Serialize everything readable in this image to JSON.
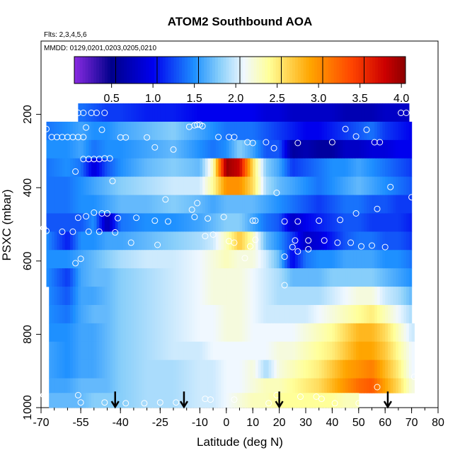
{
  "chart_data": {
    "type": "heatmap",
    "title": "ATOM2 Southbound AOA",
    "flights_note": "Flts: 2,3,4,5,6",
    "dates_note": "MMDD: 0129,0201,0203,0205,0210",
    "xlabel": "Latitude (deg N)",
    "ylabel": "PSXC (mbar)",
    "xlim": [
      -70,
      80
    ],
    "ylim": [
      1000,
      0
    ],
    "x_ticks": [
      -70,
      -55,
      -40,
      -25,
      -10,
      0,
      10,
      20,
      30,
      40,
      50,
      60,
      70,
      80
    ],
    "x_tick_labels": [
      "-70",
      "-55",
      "-40",
      "-25",
      "-10",
      "0",
      "10",
      "20",
      "30",
      "40",
      "50",
      "60",
      "70",
      "80"
    ],
    "y_ticks": [
      200,
      400,
      600,
      800,
      1000
    ],
    "y_tick_labels": [
      "200",
      "400",
      "600",
      "800",
      "1000"
    ],
    "colorbar": {
      "range": [
        0.05,
        4.05
      ],
      "ticks": [
        0.5,
        1.0,
        1.5,
        2.0,
        2.5,
        3.0,
        3.5,
        4.0
      ],
      "tick_labels": [
        "0.5",
        "1.0",
        "1.5",
        "2.0",
        "2.5",
        "3.0",
        "3.5",
        "4.0"
      ],
      "stops": [
        {
          "v": 0.05,
          "c": "#8a2be2"
        },
        {
          "v": 0.5,
          "c": "#00008b"
        },
        {
          "v": 1.0,
          "c": "#0000ee"
        },
        {
          "v": 1.5,
          "c": "#1e90ff"
        },
        {
          "v": 1.8,
          "c": "#87cefa"
        },
        {
          "v": 2.1,
          "c": "#f0f8ff"
        },
        {
          "v": 2.4,
          "c": "#ffff99"
        },
        {
          "v": 2.9,
          "c": "#ffa500"
        },
        {
          "v": 3.4,
          "c": "#ff4500"
        },
        {
          "v": 3.8,
          "c": "#cc0000"
        },
        {
          "v": 4.05,
          "c": "#8b0000"
        }
      ]
    },
    "field": {
      "rows": [
        {
          "p0": 170,
          "p1": 220,
          "lat0": -56,
          "lat1": 69
        },
        {
          "p0": 220,
          "p1": 270,
          "lat0": -68,
          "lat1": 70
        },
        {
          "p0": 270,
          "p1": 320,
          "lat0": -68,
          "lat1": 70
        },
        {
          "p0": 320,
          "p1": 370,
          "lat0": -68,
          "lat1": 70
        },
        {
          "p0": 370,
          "p1": 420,
          "lat0": -68,
          "lat1": 70
        },
        {
          "p0": 420,
          "p1": 470,
          "lat0": -68,
          "lat1": 70
        },
        {
          "p0": 470,
          "p1": 520,
          "lat0": -68,
          "lat1": 70
        },
        {
          "p0": 520,
          "p1": 570,
          "lat0": -68,
          "lat1": 70
        },
        {
          "p0": 570,
          "p1": 620,
          "lat0": -68,
          "lat1": 70
        },
        {
          "p0": 620,
          "p1": 670,
          "lat0": -68,
          "lat1": 70
        },
        {
          "p0": 670,
          "p1": 720,
          "lat0": -67,
          "lat1": 70
        },
        {
          "p0": 720,
          "p1": 770,
          "lat0": -67,
          "lat1": 70
        },
        {
          "p0": 770,
          "p1": 820,
          "lat0": -67,
          "lat1": 71
        },
        {
          "p0": 820,
          "p1": 870,
          "lat0": -67,
          "lat1": 71
        },
        {
          "p0": 870,
          "p1": 920,
          "lat0": -67,
          "lat1": 71
        },
        {
          "p0": 920,
          "p1": 960,
          "lat0": -67,
          "lat1": 71
        },
        {
          "p0": 960,
          "p1": 1000,
          "lat0": -67,
          "lat1": 50
        }
      ],
      "lat_nodes": [
        -68,
        -60,
        -55,
        -50,
        -45,
        -40,
        -30,
        -20,
        -10,
        -5,
        0,
        5,
        10,
        15,
        20,
        25,
        30,
        35,
        40,
        45,
        50,
        55,
        60,
        65,
        70
      ],
      "values": [
        [
          1.3,
          1.3,
          1.4,
          1.3,
          1.2,
          1.2,
          1.1,
          1.1,
          1.0,
          1.0,
          1.0,
          1.0,
          1.0,
          0.9,
          0.9,
          0.8,
          0.8,
          0.8,
          0.8,
          0.7,
          0.7,
          0.7,
          0.8,
          0.8,
          0.8
        ],
        [
          1.4,
          1.5,
          1.6,
          1.5,
          1.5,
          1.6,
          1.7,
          1.8,
          1.6,
          1.5,
          1.4,
          1.4,
          1.4,
          1.3,
          1.2,
          1.1,
          1.0,
          1.0,
          1.1,
          1.2,
          1.3,
          1.4,
          1.2,
          1.1,
          1.0
        ],
        [
          1.5,
          1.5,
          1.6,
          1.4,
          1.5,
          1.5,
          1.6,
          1.7,
          1.5,
          1.4,
          1.5,
          1.8,
          1.6,
          1.3,
          1.3,
          0.6,
          0.7,
          0.6,
          0.6,
          0.8,
          0.8,
          0.9,
          0.9,
          1.0,
          1.0
        ],
        [
          1.4,
          1.5,
          1.4,
          0.9,
          1.3,
          1.5,
          1.7,
          1.8,
          1.7,
          2.3,
          4.0,
          3.8,
          2.6,
          1.8,
          1.6,
          1.2,
          1.3,
          1.4,
          1.5,
          1.5,
          1.6,
          1.5,
          1.4,
          1.3,
          1.2
        ],
        [
          1.4,
          1.4,
          1.5,
          1.6,
          1.7,
          1.8,
          1.9,
          2.0,
          2.0,
          2.4,
          3.0,
          3.0,
          2.6,
          1.9,
          1.7,
          1.6,
          1.5,
          1.4,
          1.5,
          1.6,
          1.7,
          1.6,
          1.5,
          1.4,
          1.3
        ],
        [
          1.4,
          1.4,
          1.5,
          1.5,
          1.6,
          1.7,
          1.7,
          1.8,
          1.7,
          1.6,
          1.7,
          1.7,
          1.7,
          1.6,
          1.5,
          1.4,
          1.3,
          1.2,
          1.3,
          1.4,
          1.4,
          1.3,
          1.3,
          1.2,
          1.2
        ],
        [
          1.3,
          1.3,
          1.3,
          1.5,
          0.7,
          1.4,
          1.5,
          1.5,
          1.6,
          1.7,
          1.8,
          1.8,
          1.6,
          1.4,
          1.3,
          0.8,
          1.0,
          1.1,
          1.2,
          1.3,
          1.3,
          1.2,
          1.2,
          1.2,
          1.1
        ],
        [
          1.5,
          1.1,
          1.5,
          1.5,
          1.6,
          1.6,
          1.7,
          1.8,
          1.9,
          2.0,
          2.3,
          2.7,
          2.3,
          1.7,
          1.5,
          1.2,
          0.8,
          0.9,
          1.1,
          1.3,
          1.4,
          1.4,
          1.3,
          1.3,
          1.2
        ],
        [
          1.5,
          1.5,
          1.6,
          1.7,
          1.8,
          1.9,
          2.0,
          2.0,
          2.1,
          2.2,
          2.3,
          2.2,
          2.2,
          2.0,
          1.7,
          1.0,
          1.4,
          1.5,
          1.5,
          1.6,
          1.6,
          1.6,
          1.5,
          1.5,
          1.4
        ],
        [
          1.5,
          1.2,
          1.6,
          1.7,
          1.7,
          1.8,
          1.9,
          2.0,
          2.1,
          2.2,
          2.2,
          2.2,
          2.1,
          2.0,
          1.9,
          1.7,
          1.7,
          1.7,
          1.8,
          1.8,
          1.8,
          1.8,
          1.7,
          1.6,
          1.5
        ],
        [
          1.5,
          1.3,
          1.6,
          1.6,
          1.7,
          1.8,
          1.9,
          2.0,
          2.1,
          2.2,
          2.2,
          2.2,
          2.1,
          2.0,
          1.9,
          1.9,
          1.9,
          1.9,
          2.0,
          2.1,
          2.2,
          2.2,
          2.0,
          1.9,
          1.7
        ],
        [
          1.5,
          1.4,
          1.6,
          1.7,
          1.7,
          1.8,
          1.9,
          2.0,
          2.1,
          2.1,
          2.2,
          2.2,
          2.1,
          2.0,
          2.0,
          2.0,
          2.0,
          2.1,
          2.2,
          2.3,
          2.4,
          2.5,
          2.3,
          2.1,
          1.9
        ],
        [
          1.5,
          1.5,
          1.6,
          1.6,
          1.7,
          1.8,
          1.9,
          2.0,
          2.1,
          2.1,
          2.2,
          2.2,
          2.1,
          2.1,
          2.1,
          2.1,
          2.2,
          2.3,
          2.4,
          2.6,
          2.8,
          2.8,
          2.6,
          2.3,
          2.0
        ],
        [
          1.6,
          1.5,
          1.6,
          1.6,
          1.7,
          1.8,
          1.9,
          2.0,
          2.0,
          2.1,
          2.1,
          2.1,
          2.1,
          2.1,
          2.2,
          2.2,
          2.3,
          2.4,
          2.5,
          2.7,
          2.9,
          2.9,
          2.7,
          2.4,
          2.1
        ],
        [
          1.6,
          1.5,
          1.6,
          1.6,
          1.7,
          1.8,
          1.9,
          1.9,
          2.0,
          2.0,
          2.1,
          2.1,
          2.2,
          1.9,
          2.2,
          2.3,
          2.4,
          2.5,
          2.7,
          2.9,
          3.0,
          3.1,
          2.8,
          2.5,
          2.1
        ],
        [
          1.6,
          1.6,
          1.7,
          1.7,
          1.7,
          1.8,
          1.9,
          1.9,
          2.0,
          2.0,
          2.1,
          2.1,
          2.2,
          2.3,
          2.3,
          2.4,
          2.5,
          2.6,
          2.8,
          3.0,
          3.2,
          3.3,
          2.9,
          2.6,
          2.2
        ],
        [
          1.7,
          1.7,
          1.7,
          1.8,
          1.8,
          1.8,
          1.9,
          1.9,
          2.0,
          2.0,
          2.1,
          2.2,
          2.3,
          2.3,
          2.4,
          2.4,
          2.4,
          2.4,
          2.4,
          2.3,
          2.3,
          2.3,
          2.3,
          2.3,
          2.3
        ]
      ]
    },
    "observation_points": [
      [
        -56,
        196
      ],
      [
        -54,
        196
      ],
      [
        -51,
        196
      ],
      [
        -49,
        196
      ],
      [
        -46,
        196
      ],
      [
        -68,
        240
      ],
      [
        -53,
        236
      ],
      [
        -12,
        230
      ],
      [
        -11,
        228
      ],
      [
        -10,
        228
      ],
      [
        -9,
        232
      ],
      [
        -14,
        234
      ],
      [
        45,
        240
      ],
      [
        66,
        196
      ],
      [
        68,
        196
      ],
      [
        -47,
        242
      ],
      [
        -66,
        262
      ],
      [
        -64,
        262
      ],
      [
        -62,
        262
      ],
      [
        -60,
        262
      ],
      [
        -58,
        262
      ],
      [
        -56,
        262
      ],
      [
        -54,
        262
      ],
      [
        -40,
        263
      ],
      [
        -38,
        263
      ],
      [
        -30,
        263
      ],
      [
        -3,
        262
      ],
      [
        1,
        262
      ],
      [
        3,
        262
      ],
      [
        49,
        260
      ],
      [
        53,
        242
      ],
      [
        -27,
        290
      ],
      [
        -20,
        296
      ],
      [
        8,
        276
      ],
      [
        10,
        278
      ],
      [
        15,
        276
      ],
      [
        18,
        292
      ],
      [
        27,
        278
      ],
      [
        40,
        276
      ],
      [
        56,
        276
      ],
      [
        58,
        276
      ],
      [
        -54,
        322
      ],
      [
        -52,
        322
      ],
      [
        -50,
        322
      ],
      [
        -48,
        322
      ],
      [
        -46,
        320
      ],
      [
        -44,
        320
      ],
      [
        -57,
        356
      ],
      [
        -43,
        382
      ],
      [
        -23,
        432
      ],
      [
        -11,
        442
      ],
      [
        19,
        414
      ],
      [
        62,
        398
      ],
      [
        70,
        426
      ],
      [
        -56,
        482
      ],
      [
        -53,
        478
      ],
      [
        -50,
        468
      ],
      [
        -47,
        470
      ],
      [
        -45,
        470
      ],
      [
        -41,
        483
      ],
      [
        -34,
        482
      ],
      [
        -27,
        490
      ],
      [
        -22,
        492
      ],
      [
        -13,
        460
      ],
      [
        -12,
        480
      ],
      [
        -7,
        484
      ],
      [
        -1,
        480
      ],
      [
        10,
        490
      ],
      [
        11,
        490
      ],
      [
        22,
        492
      ],
      [
        27,
        492
      ],
      [
        35,
        490
      ],
      [
        43,
        488
      ],
      [
        49,
        470
      ],
      [
        57,
        458
      ],
      [
        -69,
        510
      ],
      [
        -68,
        518
      ],
      [
        -62,
        520
      ],
      [
        -58,
        520
      ],
      [
        -52,
        520
      ],
      [
        -48,
        520
      ],
      [
        -42,
        522
      ],
      [
        -36,
        550
      ],
      [
        -26,
        556
      ],
      [
        -8,
        532
      ],
      [
        -5,
        528
      ],
      [
        1,
        546
      ],
      [
        3,
        550
      ],
      [
        11,
        542
      ],
      [
        26,
        544
      ],
      [
        31,
        544
      ],
      [
        37,
        544
      ],
      [
        42,
        550
      ],
      [
        47,
        550
      ],
      [
        51,
        560
      ],
      [
        55,
        558
      ],
      [
        60,
        562
      ],
      [
        -57,
        606
      ],
      [
        -55,
        594
      ],
      [
        7,
        592
      ],
      [
        9,
        560
      ],
      [
        22,
        588
      ],
      [
        25,
        562
      ],
      [
        27,
        574
      ],
      [
        31,
        568
      ],
      [
        22,
        666
      ],
      [
        34,
        970
      ],
      [
        -69,
        966
      ],
      [
        -56,
        966
      ],
      [
        -55,
        986
      ],
      [
        -46,
        986
      ],
      [
        -38,
        988
      ],
      [
        -31,
        988
      ],
      [
        -25,
        986
      ],
      [
        -19,
        986
      ],
      [
        -8,
        976
      ],
      [
        -6,
        978
      ],
      [
        3,
        978
      ],
      [
        16,
        988
      ],
      [
        19,
        966
      ],
      [
        28,
        970
      ],
      [
        36,
        976
      ],
      [
        41,
        988
      ],
      [
        50,
        988
      ],
      [
        57,
        944
      ],
      [
        71,
        916
      ]
    ],
    "arrows": [
      {
        "lat": -42,
        "p0": 956,
        "p1": 1000
      },
      {
        "lat": -16,
        "p0": 956,
        "p1": 1000
      },
      {
        "lat": 20,
        "p0": 956,
        "p1": 1000
      },
      {
        "lat": 61,
        "p0": 956,
        "p1": 1000
      }
    ]
  }
}
